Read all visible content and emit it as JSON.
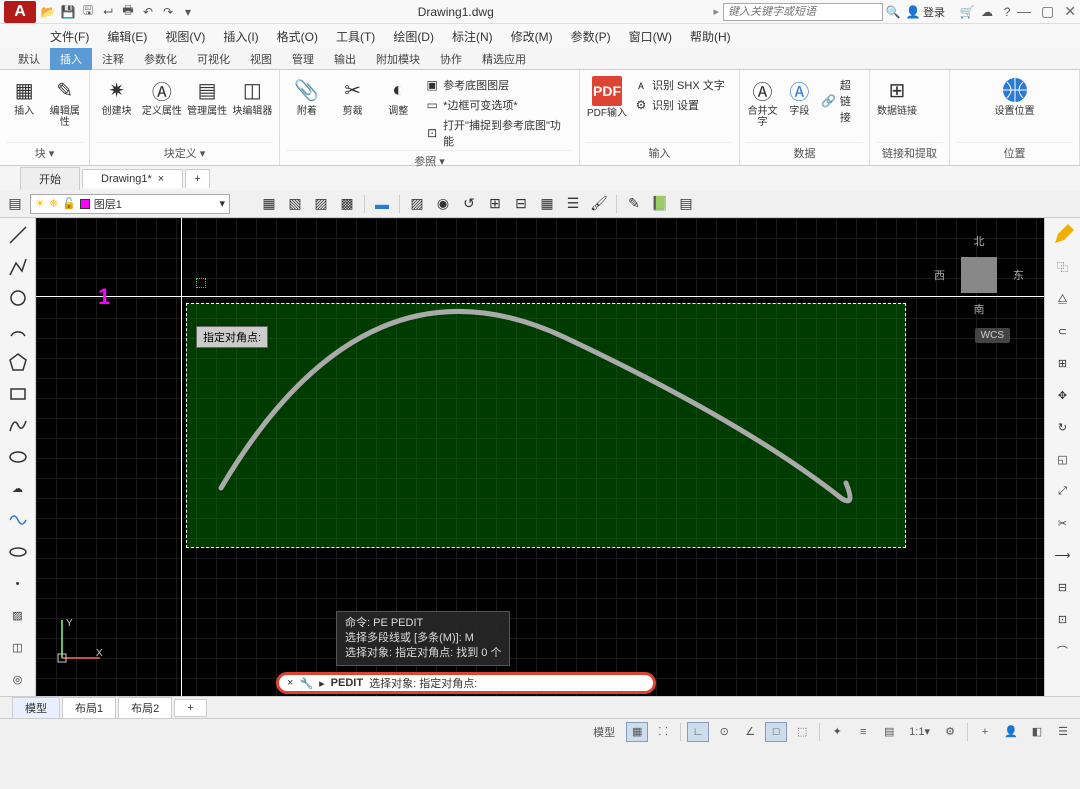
{
  "title": {
    "filename": "Drawing1.dwg",
    "search_ph": "键入关键字或短语",
    "login": "登录"
  },
  "menus": [
    "文件(F)",
    "编辑(E)",
    "视图(V)",
    "插入(I)",
    "格式(O)",
    "工具(T)",
    "绘图(D)",
    "标注(N)",
    "修改(M)",
    "参数(P)",
    "窗口(W)",
    "帮助(H)"
  ],
  "ribbon_tabs": [
    "默认",
    "插入",
    "注释",
    "参数化",
    "可视化",
    "视图",
    "管理",
    "输出",
    "附加模块",
    "协作",
    "精选应用"
  ],
  "active_ribbon_tab": 1,
  "panels": {
    "block": {
      "title": "块 ▾",
      "btns": [
        "插入",
        "编辑属性",
        "创建块",
        "定义属性",
        "管理属性",
        "块编辑器"
      ]
    },
    "blockdef": {
      "title": "块定义 ▾"
    },
    "ref": {
      "title": "参照 ▾",
      "btns": [
        "附着",
        "剪裁",
        "调整"
      ],
      "items": [
        "参考底图图层",
        "*边框可变选项*",
        "打开\"捕捉到参考底图\"功能"
      ]
    },
    "import": {
      "title": "输入",
      "btn": "PDF输入",
      "items": [
        "识别 SHX 文字",
        "识别 设置"
      ]
    },
    "import2": {
      "btns": [
        "合并文字",
        "字段"
      ],
      "items": [
        "超链接"
      ]
    },
    "data": {
      "title": "数据",
      "btn": "数据链接"
    },
    "link": {
      "title": "链接和提取"
    },
    "loc": {
      "title": "位置",
      "btn": "设置位置"
    }
  },
  "doctabs": {
    "start": "开始",
    "file": "Drawing1*"
  },
  "layer": {
    "name": "图层1"
  },
  "canvas": {
    "tooltip": "指定对角点:",
    "marker": "1",
    "cube": {
      "n": "北",
      "s": "南",
      "e": "东",
      "w": "西"
    },
    "wcs": "WCS",
    "hist": [
      "命令: PE PEDIT",
      "选择多段线或 [多条(M)]: M",
      "选择对象: 指定对角点: 找到 0 个"
    ],
    "cmd_name": "PEDIT",
    "cmd_prompt": "选择对象: 指定对角点:"
  },
  "layouts": [
    "模型",
    "布局1",
    "布局2"
  ],
  "status": {
    "scale": "1:1",
    "model": "模型"
  }
}
